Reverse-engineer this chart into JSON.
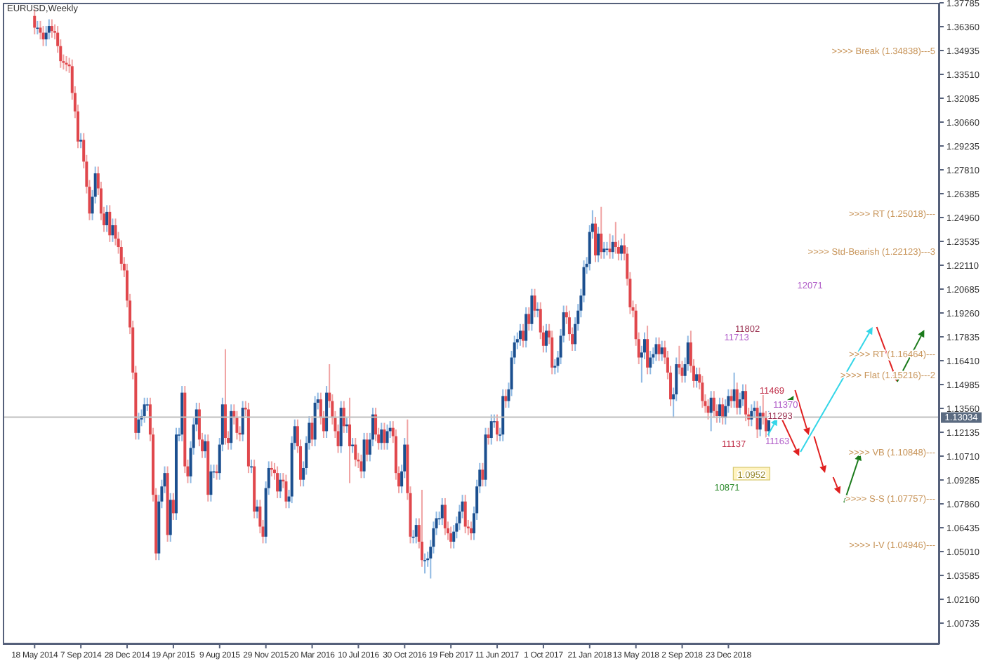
{
  "chart_data": {
    "type": "candlestick",
    "title": "EURUSD,Weekly",
    "xlim": [
      "2014-03-02",
      "2020-05-17"
    ],
    "xticks": [
      {
        "value": "2014-05-18",
        "label": "18 May 2014"
      },
      {
        "value": "2014-09-07",
        "label": "7 Sep 2014"
      },
      {
        "value": "2014-12-28",
        "label": "28 Dec 2014"
      },
      {
        "value": "2015-04-19",
        "label": "19 Apr 2015"
      },
      {
        "value": "2015-08-09",
        "label": "9 Aug 2015"
      },
      {
        "value": "2015-11-29",
        "label": "29 Nov 2015"
      },
      {
        "value": "2016-03-20",
        "label": "20 Mar 2016"
      },
      {
        "value": "2016-07-10",
        "label": "10 Jul 2016"
      },
      {
        "value": "2016-10-30",
        "label": "30 Oct 2016"
      },
      {
        "value": "2017-02-19",
        "label": "19 Feb 2017"
      },
      {
        "value": "2017-06-11",
        "label": "11 Jun 2017"
      },
      {
        "value": "2017-10-01",
        "label": "1 Oct 2017"
      },
      {
        "value": "2018-01-21",
        "label": "21 Jan 2018"
      },
      {
        "value": "2018-05-13",
        "label": "13 May 2018"
      },
      {
        "value": "2018-09-02",
        "label": "2 Sep 2018"
      },
      {
        "value": "2018-12-23",
        "label": "23 Dec 2018"
      }
    ],
    "ylim": [
      0.9948,
      1.37785
    ],
    "yticks": [
      1.37785,
      {
        "value": 1.3636,
        "label": "1.36360"
      },
      1.34935,
      {
        "value": 1.3351,
        "label": "1.33510"
      },
      1.32085,
      {
        "value": 1.3066,
        "label": "1.30660"
      },
      1.29235,
      {
        "value": 1.2781,
        "label": "1.27810"
      },
      1.26385,
      {
        "value": 1.2496,
        "label": "1.24960"
      },
      1.23535,
      {
        "value": 1.2211,
        "label": "1.22110"
      },
      1.20685,
      {
        "value": 1.1926,
        "label": "1.19260"
      },
      1.17835,
      {
        "value": 1.1641,
        "label": "1.16410"
      },
      1.14985,
      {
        "value": 1.1356,
        "label": "1.13560"
      },
      1.12135,
      {
        "value": 1.1071,
        "label": "1.10710"
      },
      1.09285,
      {
        "value": 1.0786,
        "label": "1.07860"
      },
      1.06435,
      {
        "value": 1.0501,
        "label": "1.05010"
      },
      1.03585,
      {
        "value": 1.0216,
        "label": "1.02160"
      },
      1.00735
    ],
    "ref_lines": [
      {
        "axis": "y",
        "value": 1.13034,
        "label": "1.13034",
        "color": "#c0c0c0"
      }
    ],
    "annotations": [
      ">>>> Break (1.34838)---5",
      ">>>> RT (1.25018)---",
      ">>>> Std-Bearish (1.22123)---3",
      ">>>> RT (1.16464)---",
      ">>>> Flat (1.15216)---2",
      ">>>> VB (1.10848)---",
      ">>>> S-S (1.07757)---",
      ">>>> I-V (1.04946)---",
      "12071",
      "11802",
      "11713",
      "11469",
      "11370",
      "11293",
      "11137",
      "11163",
      "1.0952",
      "10871"
    ],
    "x": [
      "2014-05-18",
      "2014-05-25",
      "2014-06-01",
      "2014-06-08",
      "2014-06-15",
      "2014-06-22",
      "2014-06-29",
      "2014-07-06",
      "2014-07-13",
      "2014-07-20",
      "2014-07-27",
      "2014-08-03",
      "2014-08-10",
      "2014-08-17",
      "2014-08-24",
      "2014-08-31",
      "2014-09-07",
      "2014-09-14",
      "2014-09-21",
      "2014-09-28",
      "2014-10-05",
      "2014-10-12",
      "2014-10-19",
      "2014-10-26",
      "2014-11-02",
      "2014-11-09",
      "2014-11-16",
      "2014-11-23",
      "2014-11-30",
      "2014-12-07",
      "2014-12-14",
      "2014-12-21",
      "2014-12-28",
      "2015-01-04",
      "2015-01-11",
      "2015-01-18",
      "2015-01-25",
      "2015-02-01",
      "2015-02-08",
      "2015-02-15",
      "2015-02-22",
      "2015-03-01",
      "2015-03-08",
      "2015-03-15",
      "2015-03-22",
      "2015-03-29",
      "2015-04-05",
      "2015-04-12",
      "2015-04-19",
      "2015-04-26",
      "2015-05-03",
      "2015-05-10",
      "2015-05-17",
      "2015-05-24",
      "2015-05-31",
      "2015-06-07",
      "2015-06-14",
      "2015-06-21",
      "2015-06-28",
      "2015-07-05",
      "2015-07-12",
      "2015-07-19",
      "2015-07-26",
      "2015-08-02",
      "2015-08-09",
      "2015-08-16",
      "2015-08-23",
      "2015-08-30",
      "2015-09-06",
      "2015-09-13",
      "2015-09-20",
      "2015-09-27",
      "2015-10-04",
      "2015-10-11",
      "2015-10-18",
      "2015-10-25",
      "2015-11-01",
      "2015-11-08",
      "2015-11-15",
      "2015-11-22",
      "2015-11-29",
      "2015-12-06",
      "2015-12-13",
      "2015-12-20",
      "2015-12-27",
      "2016-01-03",
      "2016-01-10",
      "2016-01-17",
      "2016-01-24",
      "2016-01-31",
      "2016-02-07",
      "2016-02-14",
      "2016-02-21",
      "2016-02-28",
      "2016-03-06",
      "2016-03-13",
      "2016-03-20",
      "2016-03-27",
      "2016-04-03",
      "2016-04-10",
      "2016-04-17",
      "2016-04-24",
      "2016-05-01",
      "2016-05-08",
      "2016-05-15",
      "2016-05-22",
      "2016-05-29",
      "2016-06-05",
      "2016-06-12",
      "2016-06-19",
      "2016-06-26",
      "2016-07-03",
      "2016-07-10",
      "2016-07-17",
      "2016-07-24",
      "2016-07-31",
      "2016-08-07",
      "2016-08-14",
      "2016-08-21",
      "2016-08-28",
      "2016-09-04",
      "2016-09-11",
      "2016-09-18",
      "2016-09-25",
      "2016-10-02",
      "2016-10-09",
      "2016-10-16",
      "2016-10-23",
      "2016-10-30",
      "2016-11-06",
      "2016-11-13",
      "2016-11-20",
      "2016-11-27",
      "2016-12-04",
      "2016-12-11",
      "2016-12-18",
      "2016-12-25",
      "2017-01-01",
      "2017-01-08",
      "2017-01-15",
      "2017-01-22",
      "2017-01-29",
      "2017-02-05",
      "2017-02-12",
      "2017-02-19",
      "2017-02-26",
      "2017-03-05",
      "2017-03-12",
      "2017-03-19",
      "2017-03-26",
      "2017-04-02",
      "2017-04-09",
      "2017-04-16",
      "2017-04-23",
      "2017-04-30",
      "2017-05-07",
      "2017-05-14",
      "2017-05-21",
      "2017-05-28",
      "2017-06-04",
      "2017-06-11",
      "2017-06-18",
      "2017-06-25",
      "2017-07-02",
      "2017-07-09",
      "2017-07-16",
      "2017-07-23",
      "2017-07-30",
      "2017-08-06",
      "2017-08-13",
      "2017-08-20",
      "2017-08-27",
      "2017-09-03",
      "2017-09-10",
      "2017-09-17",
      "2017-09-24",
      "2017-10-01",
      "2017-10-08",
      "2017-10-15",
      "2017-10-22",
      "2017-10-29",
      "2017-11-05",
      "2017-11-12",
      "2017-11-19",
      "2017-11-26",
      "2017-12-03",
      "2017-12-10",
      "2017-12-17",
      "2017-12-24",
      "2017-12-31",
      "2018-01-07",
      "2018-01-14",
      "2018-01-21",
      "2018-01-28",
      "2018-02-04",
      "2018-02-11",
      "2018-02-18",
      "2018-02-25",
      "2018-03-04",
      "2018-03-11",
      "2018-03-18",
      "2018-03-25",
      "2018-04-01",
      "2018-04-08",
      "2018-04-15",
      "2018-04-22",
      "2018-04-29",
      "2018-05-06",
      "2018-05-13",
      "2018-05-20",
      "2018-05-27",
      "2018-06-03",
      "2018-06-10",
      "2018-06-17",
      "2018-06-24",
      "2018-07-01",
      "2018-07-08",
      "2018-07-15",
      "2018-07-22",
      "2018-07-29",
      "2018-08-05",
      "2018-08-12",
      "2018-08-19",
      "2018-08-26",
      "2018-09-02",
      "2018-09-09",
      "2018-09-16",
      "2018-09-23",
      "2018-09-30",
      "2018-10-07",
      "2018-10-14",
      "2018-10-21",
      "2018-10-28",
      "2018-11-04",
      "2018-11-11",
      "2018-11-18",
      "2018-11-25",
      "2018-12-02",
      "2018-12-09",
      "2018-12-16",
      "2018-12-23",
      "2018-12-30",
      "2019-01-06",
      "2019-01-13",
      "2019-01-20",
      "2019-01-27",
      "2019-02-03",
      "2019-02-10",
      "2019-02-17",
      "2019-02-24",
      "2019-03-03",
      "2019-03-10",
      "2019-03-17",
      "2019-03-24",
      "2019-03-31"
    ],
    "ohlc": [
      [
        1.37,
        1.374,
        1.359,
        1.363
      ],
      [
        1.363,
        1.367,
        1.359,
        1.363
      ],
      [
        1.363,
        1.367,
        1.356,
        1.36
      ],
      [
        1.36,
        1.364,
        1.352,
        1.356
      ],
      [
        1.356,
        1.364,
        1.352,
        1.36
      ],
      [
        1.36,
        1.368,
        1.356,
        1.364
      ],
      [
        1.364,
        1.368,
        1.357,
        1.361
      ],
      [
        1.361,
        1.365,
        1.356,
        1.36
      ],
      [
        1.36,
        1.364,
        1.348,
        1.352
      ],
      [
        1.352,
        1.356,
        1.339,
        1.343
      ],
      [
        1.343,
        1.347,
        1.338,
        1.342
      ],
      [
        1.342,
        1.346,
        1.337,
        1.341
      ],
      [
        1.341,
        1.345,
        1.336,
        1.34
      ],
      [
        1.34,
        1.344,
        1.32,
        1.324
      ],
      [
        1.324,
        1.328,
        1.309,
        1.313
      ],
      [
        1.313,
        1.317,
        1.291,
        1.295
      ],
      [
        1.295,
        1.3,
        1.291,
        1.296
      ],
      [
        1.296,
        1.3,
        1.279,
        1.283
      ],
      [
        1.283,
        1.287,
        1.264,
        1.268
      ],
      [
        1.268,
        1.272,
        1.248,
        1.252
      ],
      [
        1.252,
        1.266,
        1.248,
        1.262
      ],
      [
        1.262,
        1.28,
        1.258,
        1.276
      ],
      [
        1.276,
        1.28,
        1.263,
        1.267
      ],
      [
        1.267,
        1.271,
        1.248,
        1.252
      ],
      [
        1.252,
        1.256,
        1.241,
        1.245
      ],
      [
        1.245,
        1.257,
        1.241,
        1.253
      ],
      [
        1.253,
        1.257,
        1.235,
        1.239
      ],
      [
        1.239,
        1.249,
        1.235,
        1.245
      ],
      [
        1.245,
        1.249,
        1.233,
        1.237
      ],
      [
        1.237,
        1.241,
        1.228,
        1.232
      ],
      [
        1.232,
        1.236,
        1.218,
        1.222
      ],
      [
        1.222,
        1.226,
        1.214,
        1.218
      ],
      [
        1.218,
        1.222,
        1.196,
        1.2
      ],
      [
        1.2,
        1.204,
        1.18,
        1.184
      ],
      [
        1.184,
        1.188,
        1.153,
        1.157
      ],
      [
        1.157,
        1.161,
        1.117,
        1.121
      ],
      [
        1.121,
        1.133,
        1.117,
        1.129
      ],
      [
        1.129,
        1.135,
        1.125,
        1.131
      ],
      [
        1.131,
        1.142,
        1.127,
        1.138
      ],
      [
        1.138,
        1.142,
        1.134,
        1.138
      ],
      [
        1.138,
        1.142,
        1.116,
        1.12
      ],
      [
        1.12,
        1.124,
        1.08,
        1.084
      ],
      [
        1.084,
        1.088,
        1.045,
        1.049
      ],
      [
        1.049,
        1.084,
        1.045,
        1.08
      ],
      [
        1.08,
        1.093,
        1.076,
        1.089
      ],
      [
        1.089,
        1.101,
        1.085,
        1.097
      ],
      [
        1.097,
        1.101,
        1.056,
        1.06
      ],
      [
        1.06,
        1.085,
        1.056,
        1.081
      ],
      [
        1.081,
        1.085,
        1.069,
        1.073
      ],
      [
        1.073,
        1.124,
        1.069,
        1.12
      ],
      [
        1.12,
        1.124,
        1.116,
        1.12
      ],
      [
        1.12,
        1.149,
        1.116,
        1.145
      ],
      [
        1.145,
        1.149,
        1.097,
        1.101
      ],
      [
        1.101,
        1.105,
        1.091,
        1.095
      ],
      [
        1.095,
        1.116,
        1.091,
        1.112
      ],
      [
        1.112,
        1.13,
        1.108,
        1.126
      ],
      [
        1.126,
        1.139,
        1.122,
        1.135
      ],
      [
        1.135,
        1.139,
        1.113,
        1.117
      ],
      [
        1.117,
        1.121,
        1.106,
        1.11
      ],
      [
        1.11,
        1.12,
        1.106,
        1.116
      ],
      [
        1.116,
        1.12,
        1.08,
        1.084
      ],
      [
        1.084,
        1.102,
        1.08,
        1.098
      ],
      [
        1.098,
        1.102,
        1.094,
        1.098
      ],
      [
        1.098,
        1.102,
        1.093,
        1.097
      ],
      [
        1.097,
        1.118,
        1.093,
        1.114
      ],
      [
        1.114,
        1.142,
        1.11,
        1.138
      ],
      [
        1.138,
        1.171,
        1.114,
        1.118
      ],
      [
        1.118,
        1.122,
        1.111,
        1.115
      ],
      [
        1.115,
        1.138,
        1.111,
        1.134
      ],
      [
        1.134,
        1.138,
        1.126,
        1.13
      ],
      [
        1.13,
        1.134,
        1.117,
        1.121
      ],
      [
        1.121,
        1.125,
        1.116,
        1.12
      ],
      [
        1.12,
        1.14,
        1.116,
        1.136
      ],
      [
        1.136,
        1.14,
        1.131,
        1.135
      ],
      [
        1.135,
        1.139,
        1.097,
        1.101
      ],
      [
        1.101,
        1.105,
        1.097,
        1.101
      ],
      [
        1.101,
        1.105,
        1.07,
        1.074
      ],
      [
        1.074,
        1.081,
        1.07,
        1.077
      ],
      [
        1.077,
        1.081,
        1.061,
        1.065
      ],
      [
        1.065,
        1.069,
        1.055,
        1.059
      ],
      [
        1.059,
        1.092,
        1.055,
        1.088
      ],
      [
        1.088,
        1.104,
        1.084,
        1.1
      ],
      [
        1.1,
        1.104,
        1.095,
        1.099
      ],
      [
        1.099,
        1.103,
        1.093,
        1.097
      ],
      [
        1.097,
        1.101,
        1.082,
        1.086
      ],
      [
        1.086,
        1.097,
        1.082,
        1.093
      ],
      [
        1.093,
        1.097,
        1.088,
        1.092
      ],
      [
        1.092,
        1.096,
        1.076,
        1.08
      ],
      [
        1.08,
        1.087,
        1.076,
        1.083
      ],
      [
        1.083,
        1.119,
        1.079,
        1.115
      ],
      [
        1.115,
        1.129,
        1.111,
        1.125
      ],
      [
        1.125,
        1.129,
        1.109,
        1.113
      ],
      [
        1.113,
        1.117,
        1.089,
        1.093
      ],
      [
        1.093,
        1.104,
        1.089,
        1.1
      ],
      [
        1.1,
        1.119,
        1.096,
        1.115
      ],
      [
        1.115,
        1.131,
        1.111,
        1.127
      ],
      [
        1.127,
        1.131,
        1.113,
        1.117
      ],
      [
        1.117,
        1.143,
        1.113,
        1.139
      ],
      [
        1.139,
        1.145,
        1.135,
        1.141
      ],
      [
        1.141,
        1.145,
        1.126,
        1.13
      ],
      [
        1.13,
        1.134,
        1.118,
        1.122
      ],
      [
        1.122,
        1.149,
        1.118,
        1.145
      ],
      [
        1.145,
        1.162,
        1.136,
        1.14
      ],
      [
        1.14,
        1.144,
        1.126,
        1.13
      ],
      [
        1.13,
        1.134,
        1.118,
        1.122
      ],
      [
        1.122,
        1.126,
        1.109,
        1.113
      ],
      [
        1.113,
        1.14,
        1.109,
        1.136
      ],
      [
        1.136,
        1.14,
        1.121,
        1.125
      ],
      [
        1.125,
        1.13,
        1.121,
        1.126
      ],
      [
        1.126,
        1.142,
        1.091,
        1.113
      ],
      [
        1.113,
        1.118,
        1.109,
        1.114
      ],
      [
        1.114,
        1.118,
        1.101,
        1.105
      ],
      [
        1.105,
        1.109,
        1.1,
        1.104
      ],
      [
        1.104,
        1.108,
        1.094,
        1.098
      ],
      [
        1.098,
        1.121,
        1.094,
        1.117
      ],
      [
        1.117,
        1.121,
        1.104,
        1.108
      ],
      [
        1.108,
        1.121,
        1.104,
        1.117
      ],
      [
        1.117,
        1.136,
        1.113,
        1.132
      ],
      [
        1.132,
        1.136,
        1.116,
        1.12
      ],
      [
        1.12,
        1.124,
        1.111,
        1.115
      ],
      [
        1.115,
        1.127,
        1.111,
        1.123
      ],
      [
        1.123,
        1.127,
        1.111,
        1.115
      ],
      [
        1.115,
        1.126,
        1.111,
        1.122
      ],
      [
        1.122,
        1.128,
        1.118,
        1.124
      ],
      [
        1.124,
        1.128,
        1.115,
        1.119
      ],
      [
        1.119,
        1.123,
        1.093,
        1.097
      ],
      [
        1.097,
        1.101,
        1.085,
        1.089
      ],
      [
        1.089,
        1.102,
        1.085,
        1.098
      ],
      [
        1.098,
        1.118,
        1.094,
        1.114
      ],
      [
        1.114,
        1.129,
        1.081,
        1.085
      ],
      [
        1.085,
        1.089,
        1.055,
        1.059
      ],
      [
        1.059,
        1.063,
        1.055,
        1.059
      ],
      [
        1.059,
        1.07,
        1.055,
        1.066
      ],
      [
        1.066,
        1.07,
        1.052,
        1.056
      ],
      [
        1.056,
        1.087,
        1.041,
        1.045
      ],
      [
        1.045,
        1.049,
        1.037,
        1.045
      ],
      [
        1.045,
        1.05,
        1.041,
        1.046
      ],
      [
        1.046,
        1.057,
        1.034,
        1.053
      ],
      [
        1.053,
        1.068,
        1.049,
        1.064
      ],
      [
        1.064,
        1.074,
        1.06,
        1.07
      ],
      [
        1.07,
        1.074,
        1.066,
        1.07
      ],
      [
        1.07,
        1.082,
        1.066,
        1.078
      ],
      [
        1.078,
        1.082,
        1.06,
        1.064
      ],
      [
        1.064,
        1.068,
        1.057,
        1.061
      ],
      [
        1.061,
        1.065,
        1.052,
        1.056
      ],
      [
        1.056,
        1.066,
        1.052,
        1.062
      ],
      [
        1.062,
        1.071,
        1.058,
        1.067
      ],
      [
        1.067,
        1.078,
        1.063,
        1.074
      ],
      [
        1.074,
        1.084,
        1.07,
        1.08
      ],
      [
        1.08,
        1.084,
        1.061,
        1.065
      ],
      [
        1.065,
        1.069,
        1.06,
        1.064
      ],
      [
        1.064,
        1.068,
        1.057,
        1.061
      ],
      [
        1.061,
        1.077,
        1.057,
        1.073
      ],
      [
        1.073,
        1.093,
        1.069,
        1.089
      ],
      [
        1.089,
        1.103,
        1.085,
        1.099
      ],
      [
        1.099,
        1.103,
        1.089,
        1.093
      ],
      [
        1.093,
        1.124,
        1.089,
        1.12
      ],
      [
        1.12,
        1.124,
        1.114,
        1.118
      ],
      [
        1.118,
        1.132,
        1.114,
        1.128
      ],
      [
        1.128,
        1.132,
        1.124,
        1.128
      ],
      [
        1.128,
        1.132,
        1.116,
        1.12
      ],
      [
        1.12,
        1.124,
        1.116,
        1.12
      ],
      [
        1.12,
        1.147,
        1.116,
        1.143
      ],
      [
        1.143,
        1.147,
        1.136,
        1.14
      ],
      [
        1.14,
        1.151,
        1.136,
        1.147
      ],
      [
        1.147,
        1.17,
        1.143,
        1.166
      ],
      [
        1.166,
        1.179,
        1.162,
        1.175
      ],
      [
        1.175,
        1.181,
        1.171,
        1.177
      ],
      [
        1.177,
        1.186,
        1.173,
        1.182
      ],
      [
        1.182,
        1.186,
        1.172,
        1.176
      ],
      [
        1.176,
        1.196,
        1.172,
        1.192
      ],
      [
        1.192,
        1.196,
        1.182,
        1.186
      ],
      [
        1.186,
        1.207,
        1.182,
        1.203
      ],
      [
        1.203,
        1.207,
        1.19,
        1.194
      ],
      [
        1.194,
        1.199,
        1.19,
        1.195
      ],
      [
        1.195,
        1.199,
        1.177,
        1.181
      ],
      [
        1.181,
        1.185,
        1.169,
        1.173
      ],
      [
        1.173,
        1.186,
        1.169,
        1.182
      ],
      [
        1.182,
        1.186,
        1.174,
        1.178
      ],
      [
        1.178,
        1.182,
        1.156,
        1.16
      ],
      [
        1.16,
        1.165,
        1.156,
        1.161
      ],
      [
        1.161,
        1.17,
        1.157,
        1.166
      ],
      [
        1.166,
        1.183,
        1.162,
        1.179
      ],
      [
        1.179,
        1.197,
        1.175,
        1.193
      ],
      [
        1.193,
        1.197,
        1.186,
        1.19
      ],
      [
        1.19,
        1.194,
        1.176,
        1.18
      ],
      [
        1.18,
        1.184,
        1.17,
        1.174
      ],
      [
        1.174,
        1.19,
        1.17,
        1.186
      ],
      [
        1.186,
        1.198,
        1.182,
        1.194
      ],
      [
        1.194,
        1.207,
        1.19,
        1.203
      ],
      [
        1.203,
        1.224,
        1.199,
        1.22
      ],
      [
        1.22,
        1.226,
        1.216,
        1.222
      ],
      [
        1.222,
        1.245,
        1.218,
        1.241
      ],
      [
        1.241,
        1.254,
        1.237,
        1.246
      ],
      [
        1.246,
        1.25,
        1.223,
        1.227
      ],
      [
        1.227,
        1.244,
        1.223,
        1.24
      ],
      [
        1.24,
        1.256,
        1.225,
        1.229
      ],
      [
        1.229,
        1.235,
        1.225,
        1.231
      ],
      [
        1.231,
        1.235,
        1.227,
        1.231
      ],
      [
        1.231,
        1.24,
        1.225,
        1.229
      ],
      [
        1.229,
        1.239,
        1.225,
        1.235
      ],
      [
        1.235,
        1.247,
        1.228,
        1.232
      ],
      [
        1.232,
        1.236,
        1.224,
        1.228
      ],
      [
        1.228,
        1.237,
        1.224,
        1.233
      ],
      [
        1.233,
        1.24,
        1.224,
        1.228
      ],
      [
        1.228,
        1.232,
        1.209,
        1.213
      ],
      [
        1.213,
        1.217,
        1.192,
        1.196
      ],
      [
        1.196,
        1.2,
        1.19,
        1.194
      ],
      [
        1.194,
        1.198,
        1.173,
        1.177
      ],
      [
        1.177,
        1.181,
        1.162,
        1.166
      ],
      [
        1.166,
        1.173,
        1.151,
        1.169
      ],
      [
        1.169,
        1.181,
        1.165,
        1.177
      ],
      [
        1.177,
        1.185,
        1.156,
        1.16
      ],
      [
        1.16,
        1.17,
        1.156,
        1.166
      ],
      [
        1.166,
        1.172,
        1.162,
        1.168
      ],
      [
        1.168,
        1.178,
        1.164,
        1.174
      ],
      [
        1.174,
        1.178,
        1.164,
        1.168
      ],
      [
        1.168,
        1.176,
        1.164,
        1.172
      ],
      [
        1.172,
        1.176,
        1.162,
        1.166
      ],
      [
        1.166,
        1.17,
        1.153,
        1.157
      ],
      [
        1.157,
        1.161,
        1.137,
        1.141
      ],
      [
        1.141,
        1.148,
        1.13,
        1.144
      ],
      [
        1.144,
        1.166,
        1.14,
        1.162
      ],
      [
        1.162,
        1.173,
        1.156,
        1.16
      ],
      [
        1.16,
        1.164,
        1.151,
        1.155
      ],
      [
        1.155,
        1.166,
        1.151,
        1.162
      ],
      [
        1.162,
        1.179,
        1.158,
        1.175
      ],
      [
        1.175,
        1.182,
        1.157,
        1.161
      ],
      [
        1.161,
        1.165,
        1.148,
        1.152
      ],
      [
        1.152,
        1.16,
        1.148,
        1.156
      ],
      [
        1.156,
        1.16,
        1.147,
        1.151
      ],
      [
        1.151,
        1.155,
        1.136,
        1.14
      ],
      [
        1.14,
        1.144,
        1.133,
        1.137
      ],
      [
        1.137,
        1.141,
        1.129,
        1.133
      ],
      [
        1.133,
        1.146,
        1.122,
        1.142
      ],
      [
        1.142,
        1.146,
        1.13,
        1.134
      ],
      [
        1.134,
        1.138,
        1.127,
        1.131
      ],
      [
        1.131,
        1.142,
        1.127,
        1.138
      ],
      [
        1.138,
        1.142,
        1.126,
        1.13
      ],
      [
        1.13,
        1.141,
        1.126,
        1.137
      ],
      [
        1.137,
        1.147,
        1.133,
        1.143
      ],
      [
        1.143,
        1.147,
        1.136,
        1.14
      ],
      [
        1.14,
        1.157,
        1.136,
        1.147
      ],
      [
        1.147,
        1.151,
        1.132,
        1.136
      ],
      [
        1.136,
        1.145,
        1.132,
        1.141
      ],
      [
        1.141,
        1.15,
        1.137,
        1.146
      ],
      [
        1.146,
        1.15,
        1.128,
        1.132
      ],
      [
        1.132,
        1.136,
        1.125,
        1.129
      ],
      [
        1.129,
        1.138,
        1.125,
        1.134
      ],
      [
        1.134,
        1.14,
        1.13,
        1.136
      ],
      [
        1.136,
        1.14,
        1.118,
        1.123
      ],
      [
        1.123,
        1.137,
        1.119,
        1.133
      ],
      [
        1.133,
        1.145,
        1.126,
        1.13
      ],
      [
        1.13,
        1.134,
        1.118,
        1.122
      ],
      [
        1.122,
        1.134,
        1.118,
        1.13
      ]
    ]
  }
}
